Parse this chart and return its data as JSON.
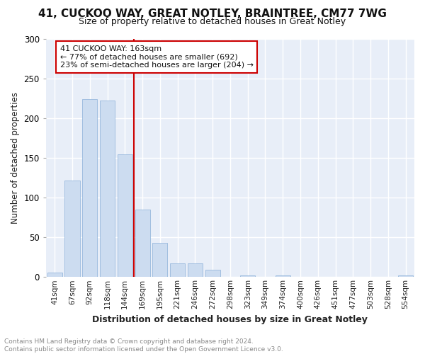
{
  "title1": "41, CUCKOO WAY, GREAT NOTLEY, BRAINTREE, CM77 7WG",
  "title2": "Size of property relative to detached houses in Great Notley",
  "xlabel": "Distribution of detached houses by size in Great Notley",
  "ylabel": "Number of detached properties",
  "categories": [
    "41sqm",
    "67sqm",
    "92sqm",
    "118sqm",
    "144sqm",
    "169sqm",
    "195sqm",
    "221sqm",
    "246sqm",
    "272sqm",
    "298sqm",
    "323sqm",
    "349sqm",
    "374sqm",
    "400sqm",
    "426sqm",
    "451sqm",
    "477sqm",
    "503sqm",
    "528sqm",
    "554sqm"
  ],
  "values": [
    6,
    122,
    224,
    222,
    155,
    85,
    43,
    17,
    17,
    9,
    0,
    2,
    0,
    2,
    0,
    0,
    0,
    0,
    0,
    0,
    2
  ],
  "bar_color": "#ccdcf0",
  "bar_edge_color": "#8ab0d8",
  "marker_line_color": "#cc0000",
  "annotation_line1": "41 CUCKOO WAY: 163sqm",
  "annotation_line2": "← 77% of detached houses are smaller (692)",
  "annotation_line3": "23% of semi-detached houses are larger (204) →",
  "annotation_box_color": "#ffffff",
  "annotation_box_edge_color": "#cc0000",
  "ylim": [
    0,
    300
  ],
  "yticks": [
    0,
    50,
    100,
    150,
    200,
    250,
    300
  ],
  "footer_text": "Contains HM Land Registry data © Crown copyright and database right 2024.\nContains public sector information licensed under the Open Government Licence v3.0.",
  "bg_color": "#ffffff",
  "plot_bg_color": "#e8eef8",
  "grid_color": "#ffffff",
  "title1_fontsize": 11,
  "title2_fontsize": 9
}
